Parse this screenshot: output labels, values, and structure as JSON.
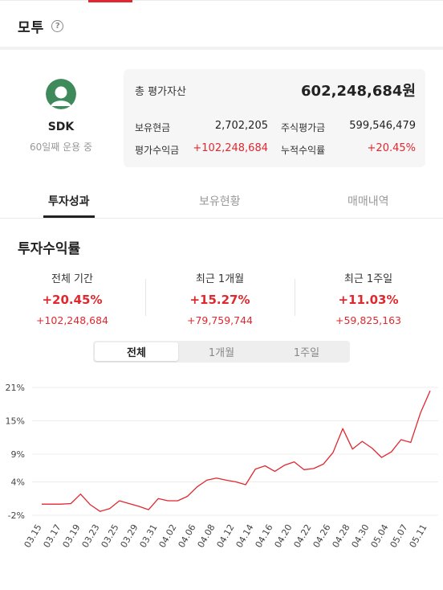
{
  "header": {
    "title": "모투",
    "help_icon": "?"
  },
  "profile": {
    "name": "SDK",
    "sub": "60일째 운용 중",
    "avatar": "user-avatar-icon"
  },
  "summary": {
    "total_label": "총 평가자산",
    "total_value": "602,248,684원",
    "cash_label": "보유현금",
    "cash_value": "2,702,205",
    "stock_eval_label": "주식평가금",
    "stock_eval_value": "599,546,479",
    "eval_profit_label": "평가수익금",
    "eval_profit_value": "+102,248,684",
    "cum_return_label": "누적수익률",
    "cum_return_value": "+20.45%"
  },
  "tabs": [
    {
      "label": "투자성과",
      "active": true
    },
    {
      "label": "보유현황",
      "active": false
    },
    {
      "label": "매매내역",
      "active": false
    }
  ],
  "performance": {
    "title": "투자수익률",
    "stats": [
      {
        "label": "전체 기간",
        "pct": "+20.45%",
        "amount": "+102,248,684"
      },
      {
        "label": "최근 1개월",
        "pct": "+15.27%",
        "amount": "+79,759,744"
      },
      {
        "label": "최근 1주일",
        "pct": "+11.03%",
        "amount": "+59,825,163"
      }
    ],
    "ranges": [
      {
        "label": "전체",
        "active": true
      },
      {
        "label": "1개월",
        "active": false
      },
      {
        "label": "1주일",
        "active": false
      }
    ]
  },
  "colors": {
    "accent": "#e0282f",
    "line": "#e0282f",
    "grid": "#ececec"
  },
  "chart_data": {
    "type": "line",
    "title": "",
    "xlabel": "",
    "ylabel": "",
    "y_ticks": [
      "21%",
      "15%",
      "9%",
      "4%",
      "-2%"
    ],
    "ylim": [
      -2,
      21
    ],
    "x_tick_labels": [
      "03.15",
      "03.17",
      "03.19",
      "03.23",
      "03.25",
      "03.29",
      "03.31",
      "04.02",
      "04.06",
      "04.08",
      "04.12",
      "04.14",
      "04.16",
      "04.20",
      "04.22",
      "04.26",
      "04.28",
      "04.30",
      "05.04",
      "05.07",
      "05.11"
    ],
    "series": [
      {
        "values": [
          0.0,
          0.0,
          0.0,
          0.1,
          1.8,
          -0.1,
          -1.3,
          -0.8,
          0.6,
          0.1,
          -0.4,
          -1.0,
          1.0,
          0.6,
          0.6,
          1.4,
          3.1,
          4.3,
          4.7,
          4.3,
          4.0,
          3.5,
          6.3,
          6.9,
          5.9,
          7.0,
          7.6,
          6.2,
          6.4,
          7.2,
          9.3,
          13.6,
          9.9,
          11.3,
          10.1,
          8.4,
          9.4,
          11.6,
          11.1,
          16.4,
          20.4
        ]
      }
    ]
  }
}
